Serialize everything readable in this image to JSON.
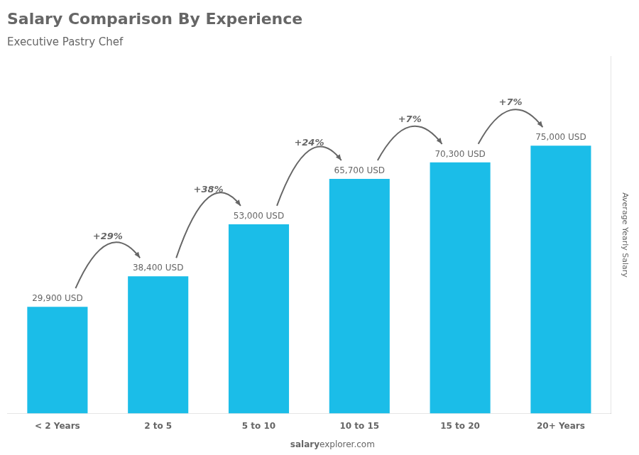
{
  "chart_data": {
    "type": "bar",
    "title": "Salary Comparison By Experience",
    "subtitle": "Executive Pastry Chef",
    "categories": [
      "< 2 Years",
      "2 to 5",
      "5 to 10",
      "10 to 15",
      "15 to 20",
      "20+ Years"
    ],
    "values": [
      29900,
      38400,
      53000,
      65700,
      70300,
      75000
    ],
    "value_labels": [
      "29,900 USD",
      "38,400 USD",
      "53,000 USD",
      "65,700 USD",
      "70,300 USD",
      "75,000 USD"
    ],
    "data_labels": true,
    "color": "#1BBDE8",
    "ylabel": "Average Yearly Salary",
    "ylim": [
      0,
      100000
    ],
    "grid": false,
    "tick_labels": "x",
    "annotations": [
      {
        "text": "+29%",
        "from": "< 2 Years",
        "to": "2 to 5"
      },
      {
        "text": "+38%",
        "from": "2 to 5",
        "to": "5 to 10"
      },
      {
        "text": "+24%",
        "from": "5 to 10",
        "to": "10 to 15"
      },
      {
        "text": "+7%",
        "from": "10 to 15",
        "to": "15 to 20"
      },
      {
        "text": "+7%",
        "from": "15 to 20",
        "to": "20+ Years"
      }
    ],
    "source": [
      "salary",
      "explorer.com"
    ]
  }
}
